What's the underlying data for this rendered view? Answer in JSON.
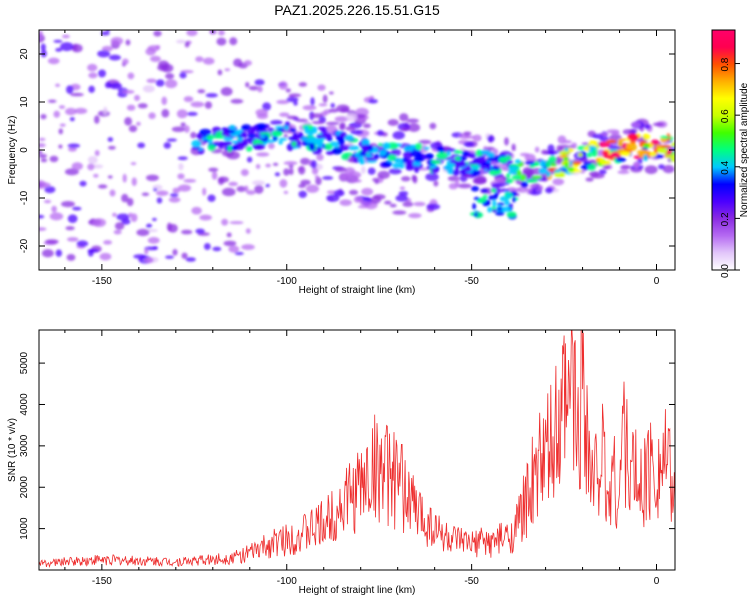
{
  "figure": {
    "title": "PAZ1.2025.226.15.51.G15"
  },
  "chart_data": [
    {
      "type": "heatmap",
      "xlabel": "Height of straight line (km)",
      "ylabel": "Frequency (Hz)",
      "xlim": [
        -167,
        5
      ],
      "ylim": [
        -25,
        25
      ],
      "xticks": [
        -150,
        -100,
        -50,
        0
      ],
      "yticks": [
        -20,
        -10,
        0,
        10,
        20
      ],
      "xtick_labels": [
        "-150",
        "-100",
        "-50",
        "0"
      ],
      "ytick_labels": [
        "-20",
        "-10",
        "0",
        "10",
        "20"
      ],
      "colorbar": {
        "label": "Normalized spectral amplitude",
        "range": [
          0,
          0.93
        ],
        "ticks": [
          0,
          0.2,
          0.4,
          0.6,
          0.8
        ],
        "tick_labels": [
          "0.0",
          "0.2",
          "0.4",
          "0.6",
          "0.8"
        ],
        "colors": [
          "#ffffff",
          "#e2c6fa",
          "#b56af2",
          "#8a2be2",
          "#4b00ff",
          "#0000ff",
          "#00c8ff",
          "#00ff80",
          "#40ff00",
          "#c8ff00",
          "#ffff00",
          "#ffb000",
          "#ff5000",
          "#ff0050",
          "#ff006a"
        ]
      },
      "ridge": {
        "x": [
          -120,
          -110,
          -100,
          -90,
          -80,
          -70,
          -60,
          -50,
          -45,
          -40,
          -35,
          -30,
          -25,
          -20,
          -15,
          -10,
          -5,
          0,
          5
        ],
        "y": [
          2,
          2.5,
          3,
          2,
          0,
          -1.5,
          -2,
          -2.5,
          -3,
          -4,
          -5,
          -4,
          -2.5,
          -2,
          -0.5,
          0,
          1,
          0.5,
          0
        ]
      }
    },
    {
      "type": "line",
      "xlabel": "Height of straight line (km)",
      "ylabel": "SNR (10 * v/v)",
      "xlim": [
        -167,
        5
      ],
      "ylim": [
        0,
        5800
      ],
      "xticks": [
        -150,
        -100,
        -50,
        0
      ],
      "yticks": [
        1000,
        2000,
        3000,
        4000,
        5000
      ],
      "xtick_labels": [
        "-150",
        "-100",
        "-50",
        "0"
      ],
      "ytick_labels": [
        "1000",
        "2000",
        "3000",
        "4000",
        "5000"
      ],
      "series": [
        {
          "color": "#ee2e2e",
          "x": [
            -167,
            -160,
            -150,
            -140,
            -130,
            -120,
            -115,
            -110,
            -105,
            -100,
            -95,
            -90,
            -85,
            -80,
            -77,
            -75,
            -73,
            -70,
            -67,
            -65,
            -62,
            -60,
            -57,
            -55,
            -52,
            -50,
            -47,
            -45,
            -42,
            -40,
            -38,
            -36,
            -35,
            -34,
            -33,
            -32,
            -31,
            -30,
            -29,
            -28,
            -27,
            -26,
            -25,
            -24,
            -23,
            -22,
            -21,
            -20,
            -19,
            -18,
            -17,
            -16,
            -15,
            -14,
            -13,
            -12,
            -11,
            -10,
            -9,
            -8,
            -7,
            -6,
            -5,
            -4,
            -3,
            -2,
            -1,
            0,
            1,
            2,
            3,
            4,
            5
          ],
          "y": [
            150,
            200,
            250,
            220,
            200,
            250,
            300,
            400,
            600,
            750,
            900,
            1100,
            1600,
            2000,
            2400,
            2550,
            2300,
            2100,
            1800,
            1400,
            1200,
            1000,
            800,
            700,
            650,
            600,
            700,
            650,
            750,
            800,
            1000,
            1500,
            1700,
            2200,
            1900,
            2500,
            2800,
            2400,
            3100,
            2600,
            3500,
            2900,
            4200,
            3300,
            5100,
            3900,
            3000,
            5800,
            4000,
            2500,
            1900,
            2800,
            3000,
            2300,
            1500,
            2600,
            2000,
            1800,
            3800,
            2700,
            2200,
            2600,
            1800,
            2100,
            2300,
            2400,
            2600,
            2700,
            2500,
            2800,
            2400,
            2100,
            1500
          ]
        }
      ]
    }
  ]
}
